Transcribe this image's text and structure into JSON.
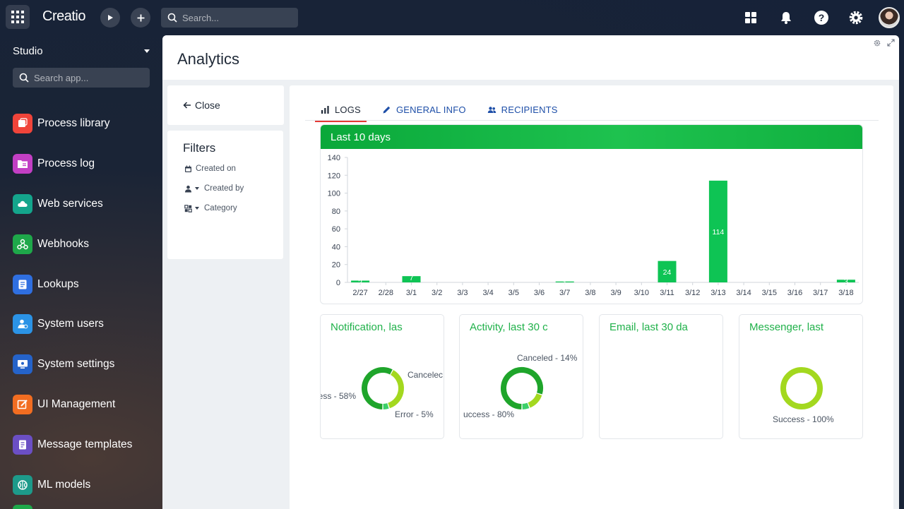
{
  "topbar": {
    "logo": "Creatio",
    "search_placeholder": "Search..."
  },
  "sidebar": {
    "workspace": "Studio",
    "search_placeholder": "Search app...",
    "items": [
      {
        "label": "Process library",
        "icon": "process-library-icon",
        "color": "#f0443a"
      },
      {
        "label": "Process log",
        "icon": "process-log-icon",
        "color": "#c23fc4"
      },
      {
        "label": "Web services",
        "icon": "web-services-icon",
        "color": "#14a58c"
      },
      {
        "label": "Webhooks",
        "icon": "webhooks-icon",
        "color": "#1ea84a"
      },
      {
        "label": "Lookups",
        "icon": "lookups-icon",
        "color": "#2f6fe0"
      },
      {
        "label": "System users",
        "icon": "system-users-icon",
        "color": "#2b93e6"
      },
      {
        "label": "System settings",
        "icon": "system-settings-icon",
        "color": "#2563c9"
      },
      {
        "label": "UI Management",
        "icon": "ui-management-icon",
        "color": "#f26d21"
      },
      {
        "label": "Message templates",
        "icon": "message-templates-icon",
        "color": "#6b4fc4"
      },
      {
        "label": "ML models",
        "icon": "ml-models-icon",
        "color": "#1d9a8a"
      }
    ]
  },
  "page": {
    "title": "Analytics",
    "close_label": "Close"
  },
  "filters": {
    "title": "Filters",
    "created_on": "Created on",
    "created_by": "Created by",
    "category": "Category"
  },
  "tabs": [
    {
      "label": "LOGS",
      "active": true
    },
    {
      "label": "GENERAL INFO",
      "active": false
    },
    {
      "label": "RECIPIENTS",
      "active": false
    }
  ],
  "chart_data": [
    {
      "type": "bar",
      "title": "Last 10 days",
      "categories": [
        "2/27",
        "2/28",
        "3/1",
        "3/2",
        "3/3",
        "3/4",
        "3/5",
        "3/6",
        "3/7",
        "3/8",
        "3/9",
        "3/10",
        "3/11",
        "3/12",
        "3/13",
        "3/14",
        "3/15",
        "3/16",
        "3/17",
        "3/18"
      ],
      "values": [
        2,
        0,
        7,
        0,
        0,
        0,
        0,
        0,
        1,
        0,
        0,
        0,
        24,
        0,
        114,
        0,
        0,
        0,
        0,
        3
      ],
      "data_labels": [
        "2",
        "",
        "7",
        "",
        "",
        "",
        "",
        "",
        "1",
        "",
        "",
        "",
        "24",
        "",
        "114",
        "",
        "",
        "",
        "",
        "3"
      ],
      "ylim": [
        0,
        140
      ],
      "yticks": [
        0,
        20,
        40,
        60,
        80,
        100,
        120,
        140
      ],
      "bar_color": "#0ec454"
    },
    {
      "type": "pie",
      "title": "Notification, las",
      "slices": [
        {
          "label": "ess - 58%",
          "value": 58,
          "color": "#1fa52b"
        },
        {
          "label": "Cancelec",
          "value": 37,
          "color": "#a3d81f"
        },
        {
          "label": "Error - 5%",
          "value": 5,
          "color": "#3ccf68"
        }
      ]
    },
    {
      "type": "pie",
      "title": "Activity, last 30 c",
      "slices": [
        {
          "label": "uccess - 80%",
          "value": 80,
          "color": "#1fa52b"
        },
        {
          "label": "Canceled - 14%",
          "value": 14,
          "color": "#a3d81f"
        },
        {
          "label": "",
          "value": 6,
          "color": "#3ccf68"
        }
      ]
    },
    {
      "type": "pie",
      "title": "Email, last 30 da",
      "slices": []
    },
    {
      "type": "pie",
      "title": "Messenger, last",
      "slices": [
        {
          "label": "Success - 100%",
          "value": 100,
          "color": "#a3d81f"
        }
      ]
    }
  ]
}
